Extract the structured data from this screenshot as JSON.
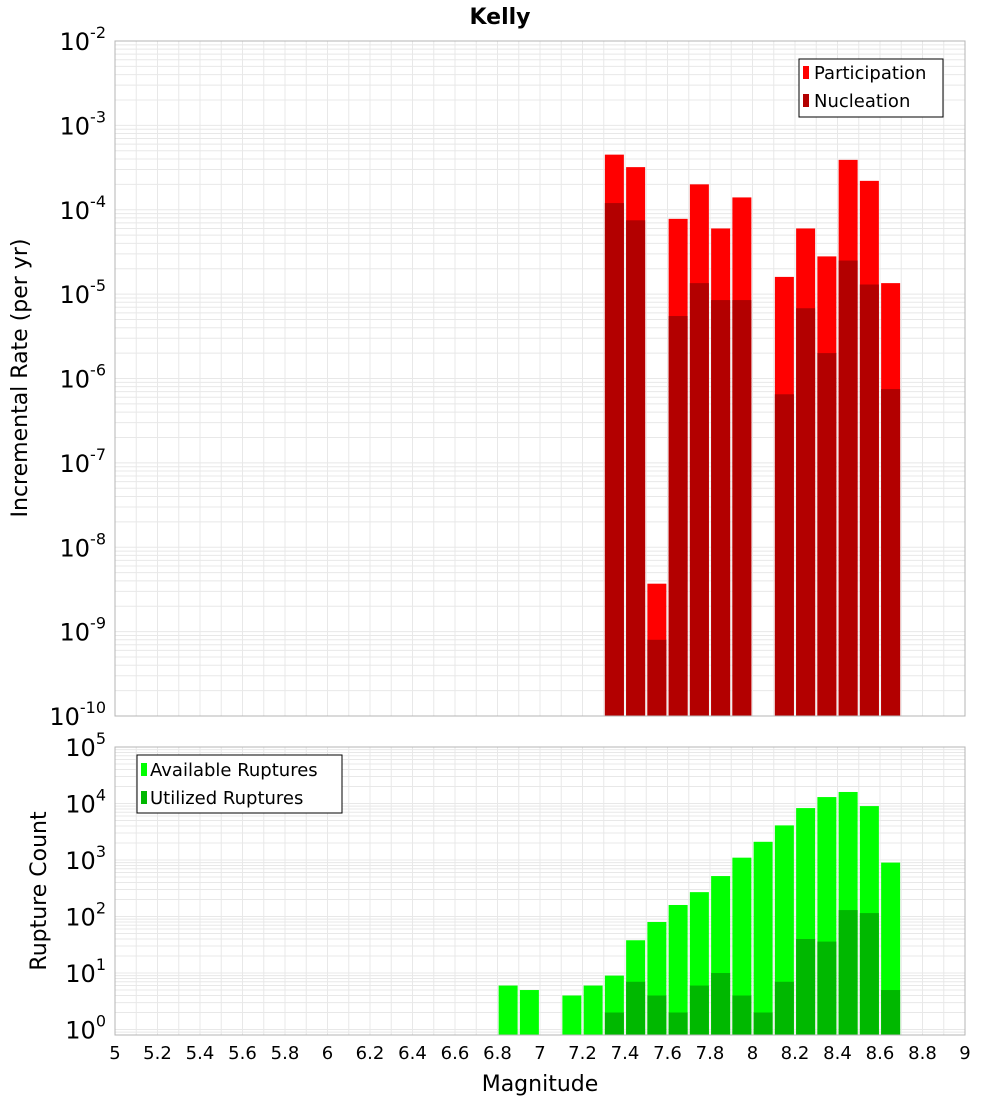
{
  "title": "Kelly",
  "xlabel": "Magnitude",
  "colors": {
    "participation": "#ff0000",
    "nucleation": "#b30000",
    "available": "#00ff00",
    "utilized": "#00b800",
    "grid": "#e8e8e8",
    "frame": "#b4b4b4"
  },
  "chart_data": [
    {
      "type": "bar",
      "name": "rate-panel",
      "title": "Kelly",
      "xlabel": "Magnitude",
      "ylabel": "Incremental Rate (per yr)",
      "yscale": "log",
      "xlim": [
        5,
        9
      ],
      "ylim_exp": [
        -10,
        -2
      ],
      "ytick_exponents": [
        "-10",
        "-9",
        "-8",
        "-7",
        "-6",
        "-5",
        "-4",
        "-3",
        "-2"
      ],
      "legend_position": "top-right",
      "x": [
        7.35,
        7.45,
        7.55,
        7.65,
        7.75,
        7.85,
        7.95,
        8.15,
        8.25,
        8.35,
        8.45,
        8.55,
        8.65
      ],
      "series": [
        {
          "name": "Participation",
          "values": [
            0.00045,
            0.00032,
            3.7e-09,
            7.8e-05,
            0.0002,
            6e-05,
            0.00014,
            1.6e-05,
            6e-05,
            2.8e-05,
            0.00039,
            0.00022,
            1.35e-05
          ]
        },
        {
          "name": "Nucleation",
          "values": [
            0.00012,
            7.5e-05,
            8e-10,
            5.5e-06,
            1.35e-05,
            8.5e-06,
            8.5e-06,
            6.5e-07,
            6.8e-06,
            2e-06,
            2.5e-05,
            1.3e-05,
            7.5e-07
          ]
        }
      ]
    },
    {
      "type": "bar",
      "name": "count-panel",
      "xlabel": "Magnitude",
      "ylabel": "Rupture Count",
      "yscale": "log",
      "xlim": [
        5,
        9
      ],
      "ylim": [
        0.8,
        100000
      ],
      "ytick_exponents": [
        "0",
        "1",
        "2",
        "3",
        "4",
        "5"
      ],
      "legend_position": "top-left",
      "x": [
        6.85,
        6.95,
        7.15,
        7.25,
        7.35,
        7.45,
        7.55,
        7.65,
        7.75,
        7.85,
        7.95,
        8.05,
        8.15,
        8.25,
        8.35,
        8.45,
        8.55,
        8.65
      ],
      "series": [
        {
          "name": "Available Ruptures",
          "values": [
            6,
            5,
            4,
            6,
            9,
            38,
            80,
            160,
            270,
            520,
            1100,
            2100,
            4100,
            8300,
            13000,
            16000,
            9000,
            900
          ]
        },
        {
          "name": "Utilized Ruptures",
          "values": [
            null,
            null,
            null,
            null,
            2,
            7,
            4,
            2,
            6,
            10,
            4,
            2,
            7,
            40,
            36,
            130,
            115,
            5
          ]
        }
      ]
    }
  ],
  "xtick_labels": [
    "5",
    "5.2",
    "5.4",
    "5.6",
    "5.8",
    "6",
    "6.2",
    "6.4",
    "6.6",
    "6.8",
    "7",
    "7.2",
    "7.4",
    "7.6",
    "7.8",
    "8",
    "8.2",
    "8.4",
    "8.6",
    "8.8",
    "9"
  ]
}
